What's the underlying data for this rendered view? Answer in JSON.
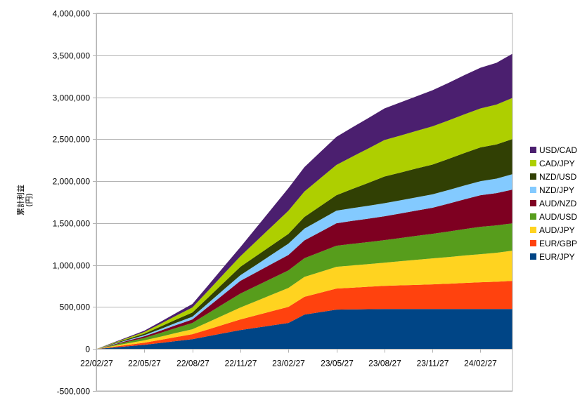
{
  "chart_data": {
    "type": "area",
    "stacked": true,
    "title": "",
    "xlabel": "",
    "ylabel_lines": [
      "累計利益",
      "(円)"
    ],
    "xlim": [
      "22/02/27",
      "24/04/27"
    ],
    "ylim": [
      -500000,
      4000000
    ],
    "grid": true,
    "legend_position": "right",
    "x_ticks": [
      "22/02/27",
      "22/05/27",
      "22/08/27",
      "22/11/27",
      "23/02/27",
      "23/05/27",
      "23/08/27",
      "23/11/27",
      "24/02/27"
    ],
    "y_ticks": [
      {
        "value": -500000,
        "label": "-500,000"
      },
      {
        "value": 0,
        "label": "0"
      },
      {
        "value": 500000,
        "label": "500,000"
      },
      {
        "value": 1000000,
        "label": "1,000,000"
      },
      {
        "value": 1500000,
        "label": "1,500,000"
      },
      {
        "value": 2000000,
        "label": "2,000,000"
      },
      {
        "value": 2500000,
        "label": "2,500,000"
      },
      {
        "value": 3000000,
        "label": "3,000,000"
      },
      {
        "value": 3500000,
        "label": "3,500,000"
      },
      {
        "value": 4000000,
        "label": "4,000,000"
      }
    ],
    "x": [
      "22/02/27",
      "22/03/27",
      "22/04/27",
      "22/05/27",
      "22/06/27",
      "22/07/27",
      "22/08/27",
      "22/09/27",
      "22/10/27",
      "22/11/27",
      "22/12/27",
      "23/01/27",
      "23/02/27",
      "23/03/27",
      "23/04/27",
      "23/05/27",
      "23/06/27",
      "23/07/27",
      "23/08/27",
      "23/09/27",
      "23/10/27",
      "23/11/27",
      "23/12/27",
      "24/01/27",
      "24/02/27",
      "24/03/27",
      "24/04/27"
    ],
    "series": [
      {
        "name": "EUR/JPY",
        "color": "#004586",
        "values": [
          0,
          17000,
          33000,
          50000,
          72000,
          95000,
          117000,
          153000,
          190000,
          226000,
          254000,
          282000,
          310000,
          410000,
          440000,
          469000,
          472000,
          474000,
          477000,
          477000,
          477000,
          477000,
          477000,
          477000,
          477000,
          477000,
          477000
        ]
      },
      {
        "name": "EUR/GBP",
        "color": "#ff420e",
        "values": [
          0,
          8000,
          17000,
          25000,
          36000,
          48000,
          59000,
          81000,
          104000,
          126000,
          148000,
          170000,
          192000,
          212000,
          231000,
          251000,
          259000,
          268000,
          276000,
          282000,
          287000,
          293000,
          301000,
          310000,
          318000,
          325000,
          335000
        ]
      },
      {
        "name": "AUD/JPY",
        "color": "#ffd320",
        "values": [
          0,
          9000,
          19000,
          28000,
          38000,
          49000,
          59000,
          87000,
          114000,
          142000,
          170000,
          198000,
          226000,
          237000,
          248000,
          259000,
          265000,
          270000,
          276000,
          287000,
          299000,
          310000,
          318000,
          327000,
          335000,
          345000,
          360000
        ]
      },
      {
        "name": "AUD/USD",
        "color": "#579d1c",
        "values": [
          0,
          10000,
          20000,
          30000,
          45000,
          60000,
          75000,
          106000,
          136000,
          167000,
          181000,
          195000,
          209000,
          223000,
          237000,
          251000,
          257000,
          262000,
          268000,
          276000,
          285000,
          293000,
          304000,
          315000,
          326000,
          326000,
          326000
        ]
      },
      {
        "name": "AUD/NZD",
        "color": "#7e0021",
        "values": [
          0,
          6000,
          12000,
          18000,
          26000,
          34000,
          42000,
          78000,
          115000,
          151000,
          162000,
          173000,
          184000,
          212000,
          240000,
          268000,
          274000,
          279000,
          285000,
          293000,
          302000,
          310000,
          332000,
          355000,
          377000,
          385000,
          402000
        ]
      },
      {
        "name": "NZD/JPY",
        "color": "#83caff",
        "values": [
          0,
          5000,
          9000,
          14000,
          20000,
          27000,
          33000,
          44000,
          56000,
          67000,
          89000,
          112000,
          134000,
          140000,
          145000,
          151000,
          152000,
          154000,
          155000,
          157000,
          158000,
          160000,
          162000,
          165000,
          167000,
          172000,
          184000
        ]
      },
      {
        "name": "NZD/USD",
        "color": "#314004",
        "values": [
          0,
          6000,
          12000,
          18000,
          29000,
          39000,
          50000,
          67000,
          83000,
          100000,
          106000,
          111000,
          117000,
          139000,
          162000,
          184000,
          229000,
          273000,
          318000,
          330000,
          343000,
          355000,
          371000,
          386000,
          402000,
          408000,
          418000
        ]
      },
      {
        "name": "CAD/JPY",
        "color": "#aecf00",
        "values": [
          0,
          7000,
          13000,
          20000,
          33000,
          46000,
          59000,
          81000,
          104000,
          126000,
          176000,
          226000,
          276000,
          304000,
          332000,
          360000,
          385000,
          410000,
          435000,
          442000,
          448000,
          455000,
          458000,
          462000,
          465000,
          475000,
          490000
        ]
      },
      {
        "name": "USD/CAD",
        "color": "#4b1f6f",
        "values": [
          0,
          5000,
          10000,
          15000,
          24000,
          33000,
          42000,
          64000,
          87000,
          109000,
          162000,
          215000,
          268000,
          290000,
          313000,
          335000,
          349000,
          363000,
          377000,
          395000,
          412000,
          430000,
          448000,
          467000,
          485000,
          497000,
          527000
        ]
      }
    ]
  }
}
